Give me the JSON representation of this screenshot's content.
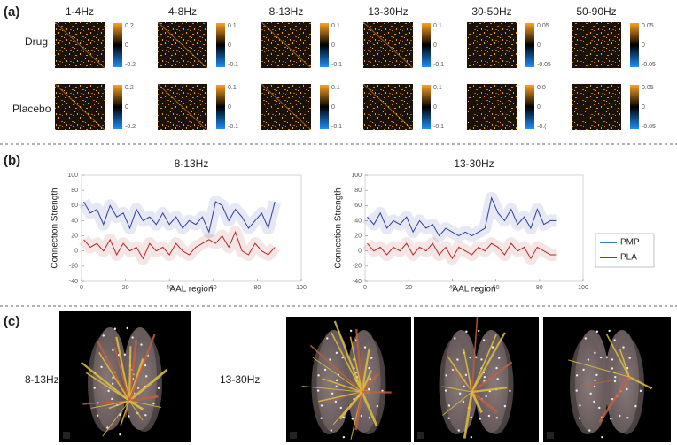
{
  "panel_labels": [
    "(a)",
    "(b)",
    "(c)"
  ],
  "matrices": {
    "bands": [
      "1-4Hz",
      "4-8Hz",
      "8-13Hz",
      "13-30Hz",
      "30-50Hz",
      "50-90Hz"
    ],
    "rows": [
      "Drug",
      "Placebo"
    ],
    "colorbar_labels": [
      [
        [
          "0.2",
          "0",
          "-0.2"
        ],
        [
          "0.1",
          "0",
          "-0.1"
        ],
        [
          "0.1",
          "0",
          "-0.1"
        ],
        [
          "0.1",
          "0",
          "-0.1"
        ],
        [
          "0.05",
          "0",
          "-0.05"
        ],
        [
          "0.05",
          "0",
          "-0.05"
        ]
      ],
      [
        [
          "0.2",
          "0",
          "-0.2"
        ],
        [
          "0.1",
          "0",
          "-0.1"
        ],
        [
          "0.1",
          "0",
          "-0.1"
        ],
        [
          "0.1",
          "0",
          "-0.1"
        ],
        [
          "0.0",
          "0",
          "-0.("
        ],
        [
          "0.05",
          "0",
          "-0.05"
        ]
      ]
    ]
  },
  "chart_data": [
    {
      "type": "line",
      "title": "8-13Hz",
      "xlabel": "AAL region",
      "ylabel": "Connection Strength",
      "x": [
        1,
        4,
        7,
        10,
        13,
        16,
        19,
        22,
        25,
        28,
        31,
        34,
        37,
        40,
        43,
        46,
        49,
        52,
        55,
        58,
        61,
        64,
        67,
        70,
        73,
        76,
        79,
        82,
        85,
        88
      ],
      "series": [
        {
          "name": "PMP",
          "color": "#2f3f9e",
          "values": [
            65,
            50,
            55,
            35,
            60,
            45,
            50,
            30,
            55,
            40,
            45,
            35,
            50,
            35,
            45,
            30,
            40,
            35,
            45,
            25,
            65,
            60,
            40,
            55,
            45,
            30,
            40,
            50,
            30,
            65
          ]
        },
        {
          "name": "PLA",
          "color": "#b02a2a",
          "values": [
            15,
            5,
            10,
            0,
            15,
            -5,
            10,
            0,
            5,
            -10,
            10,
            0,
            5,
            -5,
            10,
            0,
            -5,
            5,
            10,
            15,
            10,
            20,
            5,
            25,
            0,
            -5,
            10,
            0,
            -5,
            5
          ]
        }
      ],
      "xlim": [
        0,
        100
      ],
      "xticks": [
        0,
        20,
        40,
        60,
        80,
        100
      ],
      "ylim": [
        -40,
        100
      ],
      "yticks": [
        -40,
        -20,
        0,
        20,
        40,
        60,
        80,
        100
      ]
    },
    {
      "type": "line",
      "title": "13-30Hz",
      "xlabel": "AAL region",
      "ylabel": "Connection Strength",
      "x": [
        1,
        4,
        7,
        10,
        13,
        16,
        19,
        22,
        25,
        28,
        31,
        34,
        37,
        40,
        43,
        46,
        49,
        52,
        55,
        58,
        61,
        64,
        67,
        70,
        73,
        76,
        79,
        82,
        85,
        88
      ],
      "series": [
        {
          "name": "PMP",
          "color": "#2f3f9e",
          "values": [
            45,
            35,
            50,
            30,
            40,
            35,
            45,
            25,
            40,
            30,
            35,
            20,
            30,
            25,
            20,
            25,
            20,
            25,
            30,
            70,
            50,
            40,
            55,
            35,
            45,
            30,
            55,
            35,
            40,
            40
          ]
        },
        {
          "name": "PLA",
          "color": "#b02a2a",
          "values": [
            10,
            0,
            5,
            -5,
            5,
            0,
            10,
            -5,
            5,
            0,
            10,
            -5,
            5,
            -10,
            5,
            0,
            -5,
            5,
            0,
            10,
            5,
            -5,
            10,
            0,
            5,
            -10,
            5,
            0,
            -5,
            -5
          ]
        }
      ],
      "xlim": [
        0,
        100
      ],
      "xticks": [
        0,
        20,
        40,
        60,
        80,
        100
      ],
      "ylim": [
        -40,
        100
      ],
      "yticks": [
        -40,
        -20,
        0,
        20,
        40,
        60,
        80,
        100
      ]
    }
  ],
  "legend": {
    "colors": [
      "#3a78b8",
      "#b02a2a"
    ]
  },
  "brain": {
    "labels": [
      "8-13Hz",
      "13-30Hz"
    ]
  }
}
